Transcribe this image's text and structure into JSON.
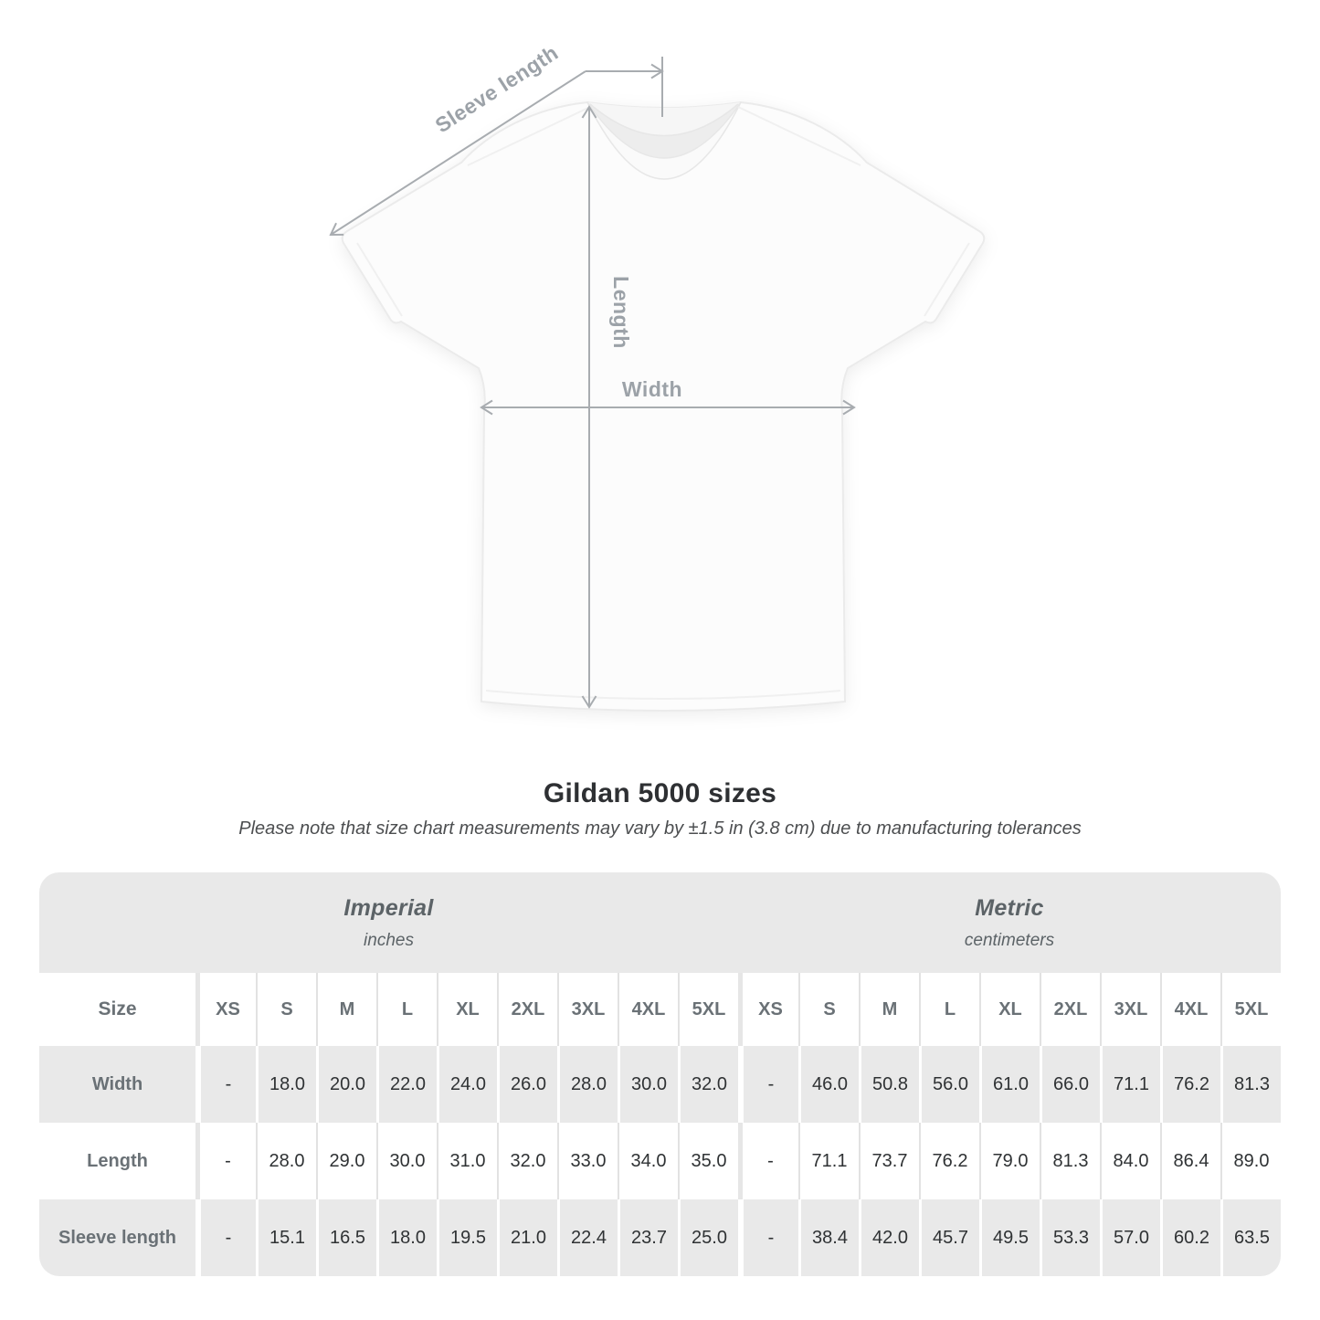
{
  "diagram": {
    "sleeve_length_label": "Sleeve length",
    "length_label": "Length",
    "width_label": "Width",
    "line_color": "#a8acb0",
    "label_color": "#9ca2a8"
  },
  "chart_data": {
    "type": "table",
    "title": "Gildan 5000 sizes",
    "subtitle": "Please note that size chart measurements may vary by ±1.5 in (3.8 cm) due to manufacturing tolerances",
    "groups": [
      {
        "label": "Imperial",
        "unit": "inches"
      },
      {
        "label": "Metric",
        "unit": "centimeters"
      }
    ],
    "size_header": "Size",
    "sizes": [
      "XS",
      "S",
      "M",
      "L",
      "XL",
      "2XL",
      "3XL",
      "4XL",
      "5XL"
    ],
    "rows": [
      {
        "label": "Width",
        "imperial": [
          "-",
          "18.0",
          "20.0",
          "22.0",
          "24.0",
          "26.0",
          "28.0",
          "30.0",
          "32.0"
        ],
        "metric": [
          "-",
          "46.0",
          "50.8",
          "56.0",
          "61.0",
          "66.0",
          "71.1",
          "76.2",
          "81.3"
        ]
      },
      {
        "label": "Length",
        "imperial": [
          "-",
          "28.0",
          "29.0",
          "30.0",
          "31.0",
          "32.0",
          "33.0",
          "34.0",
          "35.0"
        ],
        "metric": [
          "-",
          "71.1",
          "73.7",
          "76.2",
          "79.0",
          "81.3",
          "84.0",
          "86.4",
          "89.0"
        ]
      },
      {
        "label": "Sleeve length",
        "imperial": [
          "-",
          "15.1",
          "16.5",
          "18.0",
          "19.5",
          "21.0",
          "22.4",
          "23.7",
          "25.0"
        ],
        "metric": [
          "-",
          "38.4",
          "42.0",
          "45.7",
          "49.5",
          "53.3",
          "57.0",
          "60.2",
          "63.5"
        ]
      }
    ],
    "layout": {
      "stripe_color": "#e9e9e9",
      "value_text_color": "#2f3234",
      "header_text_color": "#6a7176"
    }
  }
}
